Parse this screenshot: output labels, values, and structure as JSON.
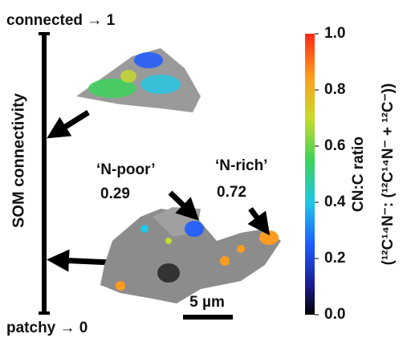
{
  "axis": {
    "top_label": "connected → 1",
    "bottom_label": "patchy → 0",
    "title": "SOM connectivity"
  },
  "annotations": [
    {
      "label": "‘N-poor’",
      "value": 0.29
    },
    {
      "label": "‘N-rich’",
      "value": 0.72
    }
  ],
  "scale_bar": "5 µm",
  "colorbar": {
    "title": "CN:C ratio",
    "subtitle": "(¹²C¹⁴N⁻: (¹²C¹⁴N⁻ + ¹²C⁻))",
    "lim": [
      0,
      1
    ],
    "ticks": [
      {
        "value": 0,
        "label": "0.0"
      },
      0.2,
      0.4,
      0.6,
      0.8,
      {
        "value": 1,
        "label": "1.0"
      }
    ]
  }
}
